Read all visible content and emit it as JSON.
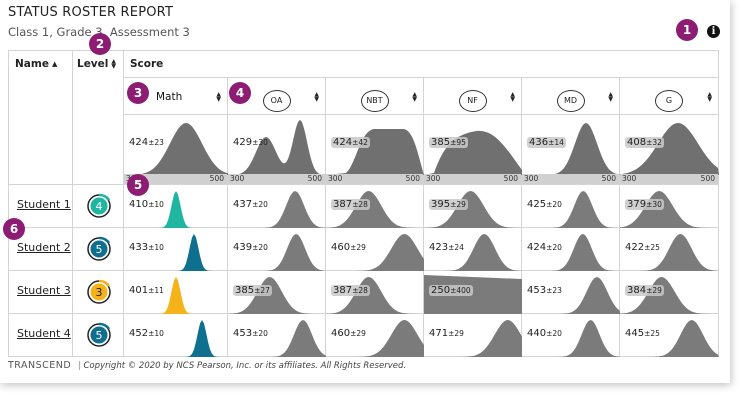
{
  "report": {
    "title": "STATUS ROSTER REPORT",
    "subtitle": "Class 1, Grade 3, Assessment 3"
  },
  "callouts": [
    "1",
    "2",
    "3",
    "4",
    "5",
    "6"
  ],
  "headers": {
    "name": "Name",
    "level": "Level",
    "score": "Score"
  },
  "subjects": [
    {
      "label": "Math",
      "circled": false
    },
    {
      "label": "OA",
      "circled": true
    },
    {
      "label": "NBT",
      "circled": true
    },
    {
      "label": "NF",
      "circled": true
    },
    {
      "label": "MD",
      "circled": true
    },
    {
      "label": "G",
      "circled": true
    }
  ],
  "class_row": {
    "axis_min": "300",
    "axis_max": "500",
    "cells": [
      {
        "score": "424",
        "se": "±23"
      },
      {
        "score": "429",
        "se": "±30"
      },
      {
        "score": "424",
        "se": "±42"
      },
      {
        "score": "385",
        "se": "±95"
      },
      {
        "score": "436",
        "se": "±14"
      },
      {
        "score": "408",
        "se": "±32"
      }
    ]
  },
  "students": [
    {
      "name": "Student 1",
      "level": "4",
      "level_color": "#1fb5a1",
      "cells": [
        {
          "score": "410",
          "se": "±10"
        },
        {
          "score": "437",
          "se": "±20"
        },
        {
          "score": "387",
          "se": "±28"
        },
        {
          "score": "395",
          "se": "±29"
        },
        {
          "score": "425",
          "se": "±20"
        },
        {
          "score": "379",
          "se": "±30"
        }
      ]
    },
    {
      "name": "Student 2",
      "level": "5",
      "level_color": "#0f6f8f",
      "cells": [
        {
          "score": "433",
          "se": "±10"
        },
        {
          "score": "439",
          "se": "±20"
        },
        {
          "score": "460",
          "se": "±29"
        },
        {
          "score": "423",
          "se": "±24"
        },
        {
          "score": "424",
          "se": "±20"
        },
        {
          "score": "422",
          "se": "±25"
        }
      ]
    },
    {
      "name": "Student 3",
      "level": "3",
      "level_color": "#f5b21b",
      "cells": [
        {
          "score": "401",
          "se": "±11"
        },
        {
          "score": "385",
          "se": "±27"
        },
        {
          "score": "387",
          "se": "±28"
        },
        {
          "score": "250",
          "se": "±400"
        },
        {
          "score": "453",
          "se": "±23"
        },
        {
          "score": "384",
          "se": "±29"
        }
      ]
    },
    {
      "name": "Student 4",
      "level": "5",
      "level_color": "#0f6f8f",
      "cells": [
        {
          "score": "452",
          "se": "±10"
        },
        {
          "score": "453",
          "se": "±20"
        },
        {
          "score": "460",
          "se": "±29"
        },
        {
          "score": "471",
          "se": "±29"
        },
        {
          "score": "440",
          "se": "±20"
        },
        {
          "score": "445",
          "se": "±25"
        }
      ]
    }
  ],
  "footer": {
    "logo": "TRANSCEND",
    "copyright": "Copyright © 2020 by NCS Pearson, Inc. or its affiliates. All Rights Reserved."
  },
  "colors": {
    "badge": "#8c1d73",
    "class_curve": "#707070",
    "student_curve": "#7b7b7b",
    "level3": "#f5b21b",
    "level4": "#1fb5a1",
    "level5": "#0f6f8f"
  }
}
